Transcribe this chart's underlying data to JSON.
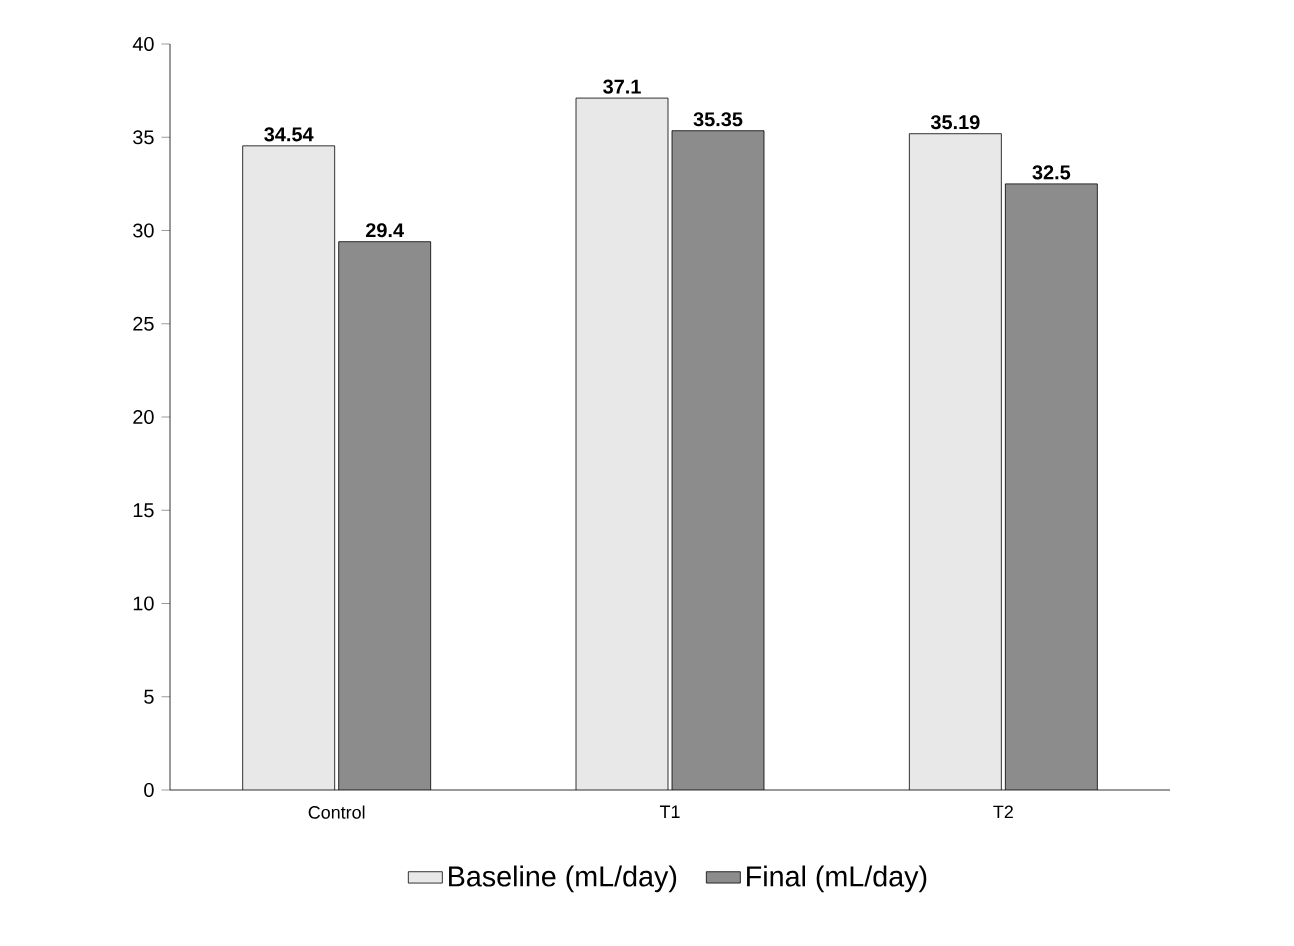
{
  "chart_data": {
    "type": "bar",
    "categories": [
      "Control",
      "T1",
      "T2"
    ],
    "series": [
      {
        "name": "Baseline (mL/day)",
        "color": "#e8e8e8",
        "values": [
          34.54,
          37.1,
          35.19
        ]
      },
      {
        "name": "Final (mL/day)",
        "color": "#8c8c8c",
        "values": [
          29.4,
          35.35,
          32.5
        ]
      }
    ],
    "ylim": [
      0,
      40
    ],
    "yticks": [
      0,
      5,
      10,
      15,
      20,
      25,
      30,
      35,
      40
    ],
    "data_labels": true,
    "legend": "bottom"
  }
}
